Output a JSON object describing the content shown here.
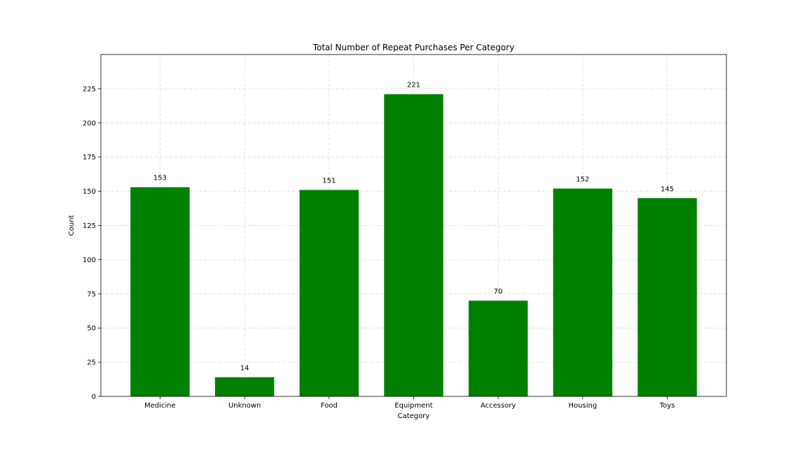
{
  "chart_data": {
    "type": "bar",
    "title": "Total Number of Repeat Purchases Per Category",
    "xlabel": "Category",
    "ylabel": "Count",
    "categories": [
      "Medicine",
      "Unknown",
      "Food",
      "Equipment",
      "Accessory",
      "Housing",
      "Toys"
    ],
    "values": [
      153,
      14,
      151,
      221,
      70,
      152,
      145
    ],
    "ylim": [
      0,
      250
    ],
    "yticks": [
      0,
      25,
      50,
      75,
      100,
      125,
      150,
      175,
      200,
      225
    ],
    "grid": true,
    "bar_color": "#008000",
    "data_labels": true
  }
}
